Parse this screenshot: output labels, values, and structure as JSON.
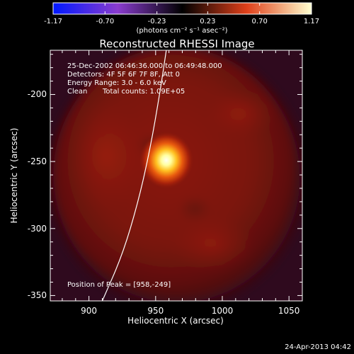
{
  "title": "Reconstructed RHESSI Image",
  "colorbar": {
    "ticks": [
      {
        "label": "-1.17",
        "value": -1.17
      },
      {
        "label": "-0.70",
        "value": -0.7
      },
      {
        "label": "-0.23",
        "value": -0.23
      },
      {
        "label": "0.23",
        "value": 0.23
      },
      {
        "label": "0.70",
        "value": 0.7
      },
      {
        "label": "1.17",
        "value": 1.17
      }
    ],
    "range": [
      -1.17,
      1.17
    ],
    "units": "(photons cm⁻² s⁻¹ asec⁻²)",
    "colors": {
      "low": "#0018ff",
      "mid_low": "#8a3ccf",
      "zero": "#000000",
      "mid_high": "#e0401a",
      "high": "#ffffd0"
    }
  },
  "info": {
    "time_range": "25-Dec-2002 06:46:36.000 to 06:49:48.000",
    "detectors": "Detectors: 4F 5F 6F 7F 8F, Att 0",
    "energy": "Energy Range: 3.0 - 6.0 keV",
    "algorithm": "Clean",
    "counts": "Total counts: 1.09E+05",
    "peak": "Position of Peak = [958,-249]"
  },
  "axes": {
    "xlabel": "Heliocentric X (arcsec)",
    "ylabel": "Heliocentric Y (arcsec)",
    "xlim": [
      871,
      1060
    ],
    "ylim": [
      -354,
      -167
    ],
    "xticks": [
      {
        "label": "900",
        "value": 900
      },
      {
        "label": "950",
        "value": 950
      },
      {
        "label": "1000",
        "value": 1000
      },
      {
        "label": "1050",
        "value": 1050
      }
    ],
    "yticks": [
      {
        "label": "-200",
        "value": -200
      },
      {
        "label": "-250",
        "value": -250
      },
      {
        "label": "-300",
        "value": -300
      },
      {
        "label": "-350",
        "value": -350
      }
    ]
  },
  "image": {
    "peak": {
      "x": 958,
      "y": -249
    },
    "limb_curve": [
      [
        910,
        -354
      ],
      [
        925,
        -320
      ],
      [
        937,
        -280
      ],
      [
        946,
        -240
      ],
      [
        953,
        -200
      ],
      [
        958,
        -167
      ]
    ]
  },
  "footer": {
    "timestamp": "24-Apr-2013 04:42"
  }
}
